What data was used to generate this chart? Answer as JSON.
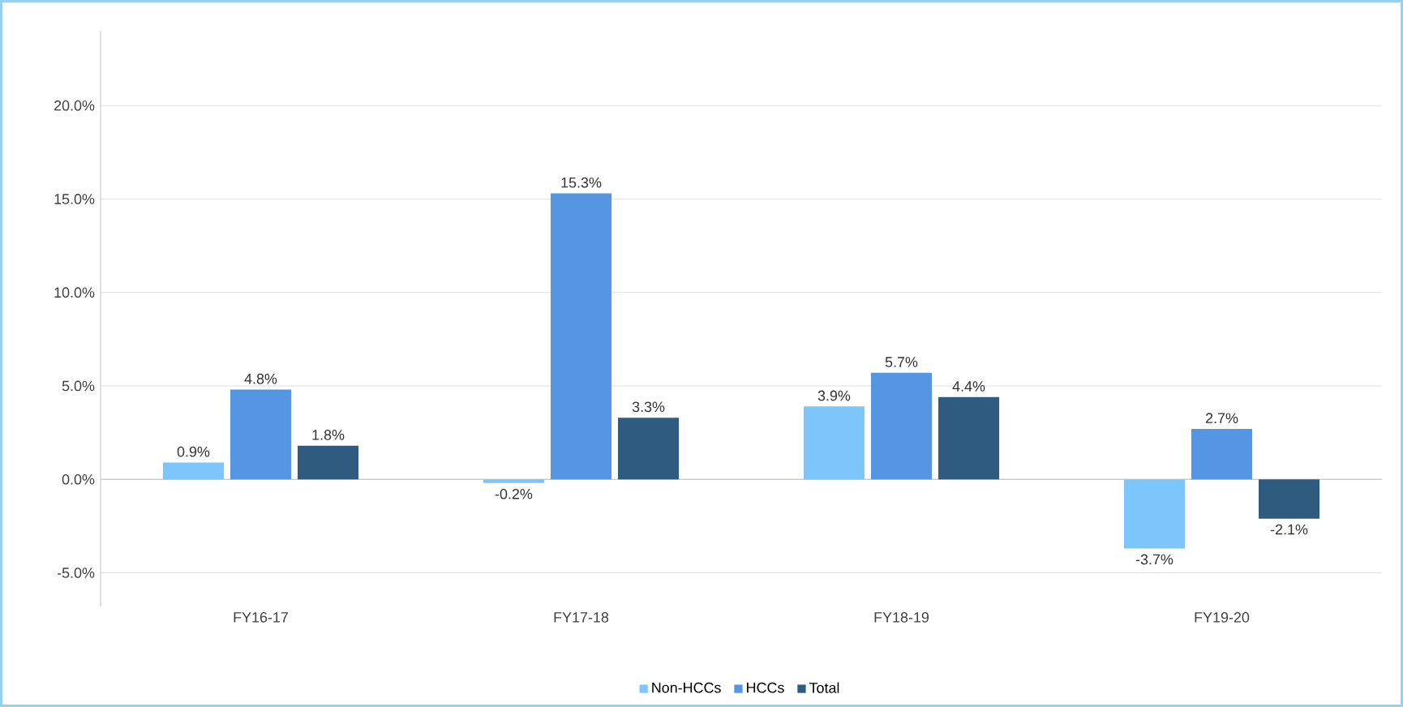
{
  "chart_data": {
    "type": "bar",
    "categories": [
      "FY16-17",
      "FY17-18",
      "FY18-19",
      "FY19-20"
    ],
    "series": [
      {
        "name": "Non-HCCs",
        "color": "#7dc6fb",
        "values": [
          0.9,
          -0.2,
          3.9,
          -3.7
        ],
        "value_labels": [
          "0.9%",
          "-0.2%",
          "3.9%",
          "-3.7%"
        ]
      },
      {
        "name": "HCCs",
        "color": "#5596e3",
        "values": [
          4.8,
          15.3,
          5.7,
          2.7
        ],
        "value_labels": [
          "4.8%",
          "15.3%",
          "5.7%",
          "2.7%"
        ]
      },
      {
        "name": "Total",
        "color": "#2f5b80",
        "values": [
          1.8,
          3.3,
          4.4,
          -2.1
        ],
        "value_labels": [
          "1.8%",
          "3.3%",
          "4.4%",
          "-2.1%"
        ]
      }
    ],
    "ylim": [
      -6.8,
      24
    ],
    "yticks": [
      {
        "value": -5,
        "label": "-5.0%"
      },
      {
        "value": 0,
        "label": "0.0%"
      },
      {
        "value": 5,
        "label": "5.0%"
      },
      {
        "value": 10,
        "label": "10.0%"
      },
      {
        "value": 15,
        "label": "15.0%"
      },
      {
        "value": 20,
        "label": "20.0%"
      }
    ],
    "grid": "y",
    "legend": "bottom"
  }
}
